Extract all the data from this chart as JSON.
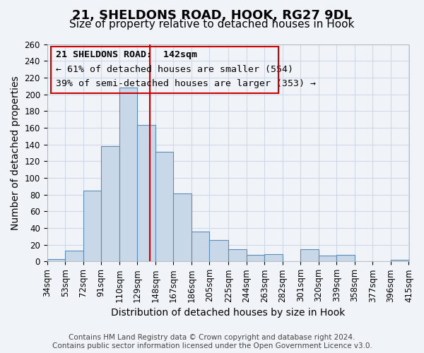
{
  "title": "21, SHELDONS ROAD, HOOK, RG27 9DL",
  "subtitle": "Size of property relative to detached houses in Hook",
  "xlabel": "Distribution of detached houses by size in Hook",
  "ylabel": "Number of detached properties",
  "footer_line1": "Contains HM Land Registry data © Crown copyright and database right 2024.",
  "footer_line2": "Contains public sector information licensed under the Open Government Licence v3.0.",
  "bin_labels": [
    "34sqm",
    "53sqm",
    "72sqm",
    "91sqm",
    "110sqm",
    "129sqm",
    "148sqm",
    "167sqm",
    "186sqm",
    "205sqm",
    "225sqm",
    "244sqm",
    "263sqm",
    "282sqm",
    "301sqm",
    "320sqm",
    "339sqm",
    "358sqm",
    "377sqm",
    "396sqm",
    "415sqm"
  ],
  "bar_values": [
    3,
    13,
    85,
    138,
    208,
    163,
    131,
    81,
    36,
    26,
    15,
    8,
    9,
    0,
    15,
    7,
    8,
    0,
    0,
    2
  ],
  "bar_edges": [
    34,
    53,
    72,
    91,
    110,
    129,
    148,
    167,
    186,
    205,
    225,
    244,
    263,
    282,
    301,
    320,
    339,
    358,
    377,
    396
  ],
  "xlim_max": 415,
  "property_size": 142,
  "annotation_title": "21 SHELDONS ROAD:  142sqm",
  "annotation_line2": "← 61% of detached houses are smaller (554)",
  "annotation_line3": "39% of semi-detached houses are larger (353) →",
  "vline_x": 142,
  "ylim": [
    0,
    260
  ],
  "yticks": [
    0,
    20,
    40,
    60,
    80,
    100,
    120,
    140,
    160,
    180,
    200,
    220,
    240,
    260
  ],
  "bar_facecolor": "#c8d8e8",
  "bar_edgecolor": "#5b8db8",
  "vline_color": "#cc0000",
  "box_edgecolor": "#cc0000",
  "grid_color": "#d0d8e8",
  "background_color": "#f0f4f8",
  "title_fontsize": 13,
  "subtitle_fontsize": 11,
  "axis_label_fontsize": 10,
  "tick_fontsize": 8.5,
  "annotation_fontsize": 9.5,
  "footer_fontsize": 7.5
}
